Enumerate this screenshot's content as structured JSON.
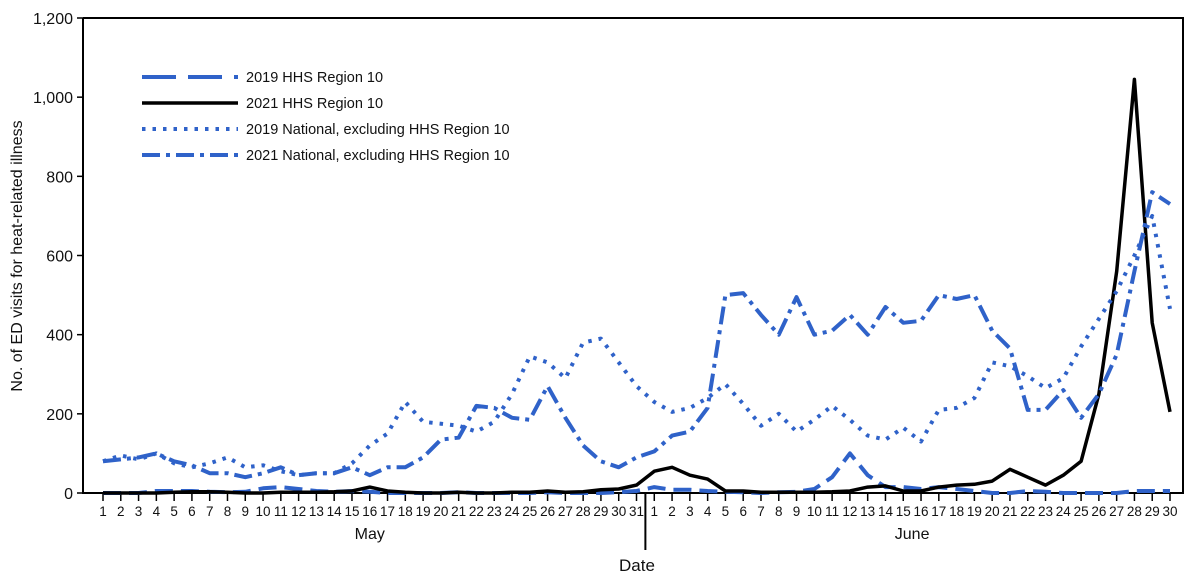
{
  "chart_data": {
    "type": "line",
    "xlabel": "Date",
    "ylabel": "No. of ED visits for heat-related illness",
    "ylim": [
      0,
      1200
    ],
    "yticks": [
      "0",
      "200",
      "400",
      "600",
      "800",
      "1,000",
      "1,200"
    ],
    "ytick_values": [
      0,
      200,
      400,
      600,
      800,
      1000,
      1200
    ],
    "months": [
      {
        "label": "May",
        "days": [
          "1",
          "2",
          "3",
          "4",
          "5",
          "6",
          "7",
          "8",
          "9",
          "10",
          "11",
          "12",
          "13",
          "14",
          "15",
          "16",
          "17",
          "18",
          "19",
          "20",
          "21",
          "22",
          "23",
          "24",
          "25",
          "26",
          "27",
          "28",
          "29",
          "30",
          "31"
        ]
      },
      {
        "label": "June",
        "days": [
          "1",
          "2",
          "3",
          "4",
          "5",
          "6",
          "7",
          "8",
          "9",
          "10",
          "11",
          "12",
          "13",
          "14",
          "15",
          "16",
          "17",
          "18",
          "19",
          "20",
          "21",
          "22",
          "23",
          "24",
          "25",
          "26",
          "27",
          "28",
          "29",
          "30"
        ]
      }
    ],
    "legend_position": "top-left",
    "grid": false,
    "series": [
      {
        "name": "2019 HHS Region 10",
        "style": "dashed",
        "color": "#2f62c9",
        "values": [
          0,
          0,
          0,
          5,
          5,
          5,
          3,
          2,
          3,
          12,
          15,
          10,
          5,
          3,
          5,
          3,
          0,
          0,
          0,
          0,
          2,
          0,
          0,
          0,
          0,
          2,
          0,
          0,
          0,
          2,
          5,
          15,
          8,
          8,
          5,
          3,
          2,
          0,
          2,
          3,
          10,
          40,
          100,
          45,
          15,
          15,
          10,
          15,
          10,
          5,
          0,
          0,
          5,
          3,
          0,
          0,
          0,
          0,
          5,
          5,
          5
        ]
      },
      {
        "name": "2021 HHS Region 10",
        "style": "solid",
        "color": "#000000",
        "values": [
          0,
          0,
          0,
          0,
          2,
          3,
          3,
          2,
          0,
          0,
          2,
          2,
          2,
          3,
          5,
          15,
          5,
          2,
          0,
          0,
          2,
          0,
          0,
          2,
          2,
          5,
          2,
          3,
          8,
          10,
          20,
          55,
          65,
          45,
          35,
          5,
          5,
          2,
          2,
          2,
          2,
          3,
          5,
          15,
          18,
          5,
          5,
          15,
          20,
          22,
          30,
          60,
          40,
          20,
          45,
          80,
          250,
          560,
          1045,
          430,
          205
        ]
      },
      {
        "name": "2019 National, excluding HHS Region 10",
        "style": "dotted",
        "color": "#2f62c9",
        "values": [
          80,
          95,
          85,
          100,
          75,
          65,
          75,
          90,
          65,
          70,
          55,
          45,
          50,
          50,
          75,
          120,
          150,
          230,
          180,
          175,
          170,
          155,
          180,
          250,
          345,
          330,
          290,
          380,
          390,
          330,
          270,
          230,
          205,
          215,
          240,
          275,
          225,
          170,
          200,
          155,
          185,
          220,
          185,
          145,
          135,
          165,
          130,
          210,
          215,
          240,
          330,
          320,
          295,
          265,
          290,
          370,
          440,
          510,
          600,
          700,
          465
        ]
      },
      {
        "name": "2021 National, excluding HHS Region 10",
        "style": "dashdot",
        "color": "#2f62c9",
        "values": [
          80,
          85,
          90,
          100,
          80,
          70,
          50,
          50,
          40,
          50,
          65,
          45,
          50,
          50,
          65,
          45,
          65,
          65,
          90,
          135,
          140,
          220,
          215,
          190,
          185,
          270,
          190,
          120,
          80,
          65,
          90,
          105,
          145,
          155,
          215,
          500,
          505,
          450,
          400,
          495,
          400,
          410,
          450,
          400,
          470,
          430,
          435,
          500,
          490,
          500,
          410,
          365,
          210,
          210,
          260,
          190,
          250,
          350,
          560,
          760,
          730
        ]
      }
    ]
  }
}
